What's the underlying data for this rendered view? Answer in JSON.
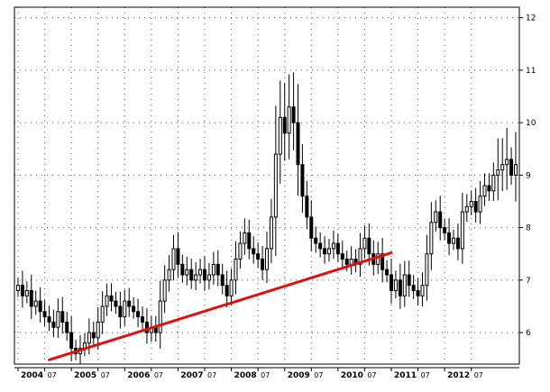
{
  "chart_data": {
    "type": "candlestick",
    "title": "",
    "xlabel": "",
    "ylabel": "",
    "ylim": [
      5.4,
      12.2
    ],
    "x_start": "2004-01",
    "x_end": "2013-05",
    "grid": "dotted",
    "y_axis_side": "right",
    "y_ticks": [
      6,
      7,
      8,
      9,
      10,
      11,
      12
    ],
    "x_tick_labels": [
      {
        "date": "2004-01",
        "label": "2004"
      },
      {
        "date": "2004-07",
        "label": "07"
      },
      {
        "date": "2005-01",
        "label": "2005"
      },
      {
        "date": "2005-07",
        "label": "07"
      },
      {
        "date": "2006-01",
        "label": "2006"
      },
      {
        "date": "2006-07",
        "label": "07"
      },
      {
        "date": "2007-01",
        "label": "2007"
      },
      {
        "date": "2007-07",
        "label": "07"
      },
      {
        "date": "2008-01",
        "label": "2008"
      },
      {
        "date": "2008-07",
        "label": "07"
      },
      {
        "date": "2009-01",
        "label": "2009"
      },
      {
        "date": "2009-07",
        "label": "07"
      },
      {
        "date": "2010-01",
        "label": "2010"
      },
      {
        "date": "2010-07",
        "label": "07"
      },
      {
        "date": "2011-01",
        "label": "2011"
      },
      {
        "date": "2011-07",
        "label": "07"
      },
      {
        "date": "2012-01",
        "label": "2012"
      },
      {
        "date": "2012-07",
        "label": "07"
      }
    ],
    "colors": {
      "up_body": "#ffffff",
      "down_body": "#000000",
      "wick": "#000000",
      "trendline": "#e01010",
      "grid": "#555555",
      "frame": "#000000"
    },
    "trendline": {
      "from": {
        "date": "2004-08",
        "value": 5.48
      },
      "to": {
        "date": "2011-01",
        "value": 7.52
      }
    },
    "closes": [
      6.9,
      6.7,
      6.8,
      6.5,
      6.6,
      6.4,
      6.3,
      6.2,
      6.1,
      6.4,
      6.2,
      6.0,
      5.7,
      5.6,
      5.7,
      5.8,
      6.0,
      5.9,
      6.2,
      6.5,
      6.7,
      6.6,
      6.5,
      6.3,
      6.6,
      6.5,
      6.4,
      6.3,
      6.2,
      6.0,
      6.1,
      6.0,
      6.6,
      7.0,
      7.2,
      7.6,
      7.3,
      7.1,
      7.2,
      7.0,
      7.1,
      7.2,
      7.0,
      7.1,
      7.3,
      7.1,
      6.9,
      6.7,
      7.0,
      7.4,
      7.7,
      7.9,
      7.6,
      7.5,
      7.4,
      7.2,
      7.6,
      8.2,
      9.4,
      10.1,
      9.8,
      10.3,
      10.0,
      9.2,
      8.6,
      8.2,
      7.8,
      7.7,
      7.6,
      7.5,
      7.6,
      7.7,
      7.5,
      7.4,
      7.3,
      7.4,
      7.3,
      7.6,
      7.8,
      7.5,
      7.3,
      7.5,
      7.2,
      7.1,
      6.8,
      7.0,
      6.7,
      7.1,
      6.9,
      6.8,
      6.7,
      6.9,
      7.5,
      8.1,
      8.3,
      8.0,
      7.9,
      7.7,
      7.8,
      7.6,
      8.3,
      8.4,
      8.5,
      8.3,
      8.6,
      8.8,
      8.7,
      9.0,
      9.1,
      9.2,
      9.3,
      9.0,
      9.2
    ]
  }
}
